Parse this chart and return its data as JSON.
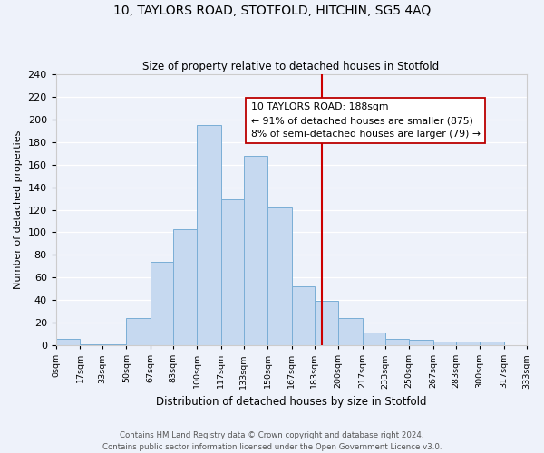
{
  "title_main": "10, TAYLORS ROAD, STOTFOLD, HITCHIN, SG5 4AQ",
  "subtitle": "Size of property relative to detached houses in Stotfold",
  "xlabel": "Distribution of detached houses by size in Stotfold",
  "ylabel": "Number of detached properties",
  "bin_edges": [
    0,
    17,
    33,
    50,
    67,
    83,
    100,
    117,
    133,
    150,
    167,
    183,
    200,
    217,
    233,
    250,
    267,
    283,
    300,
    317,
    333
  ],
  "bin_counts": [
    6,
    1,
    1,
    24,
    74,
    103,
    195,
    129,
    168,
    122,
    52,
    39,
    24,
    11,
    6,
    5,
    3,
    3,
    3,
    0
  ],
  "bar_color": "#c6d9f0",
  "bar_edgecolor": "#7aaed6",
  "property_line_x": 188,
  "property_line_color": "#cc0000",
  "annotation_title": "10 TAYLORS ROAD: 188sqm",
  "annotation_line1": "← 91% of detached houses are smaller (875)",
  "annotation_line2": "8% of semi-detached houses are larger (79) →",
  "ylim": [
    0,
    240
  ],
  "yticks": [
    0,
    20,
    40,
    60,
    80,
    100,
    120,
    140,
    160,
    180,
    200,
    220,
    240
  ],
  "tick_labels": [
    "0sqm",
    "17sqm",
    "33sqm",
    "50sqm",
    "67sqm",
    "83sqm",
    "100sqm",
    "117sqm",
    "133sqm",
    "150sqm",
    "167sqm",
    "183sqm",
    "200sqm",
    "217sqm",
    "233sqm",
    "250sqm",
    "267sqm",
    "283sqm",
    "300sqm",
    "317sqm",
    "333sqm"
  ],
  "footer_line1": "Contains HM Land Registry data © Crown copyright and database right 2024.",
  "footer_line2": "Contains public sector information licensed under the Open Government Licence v3.0.",
  "background_color": "#eef2fa"
}
